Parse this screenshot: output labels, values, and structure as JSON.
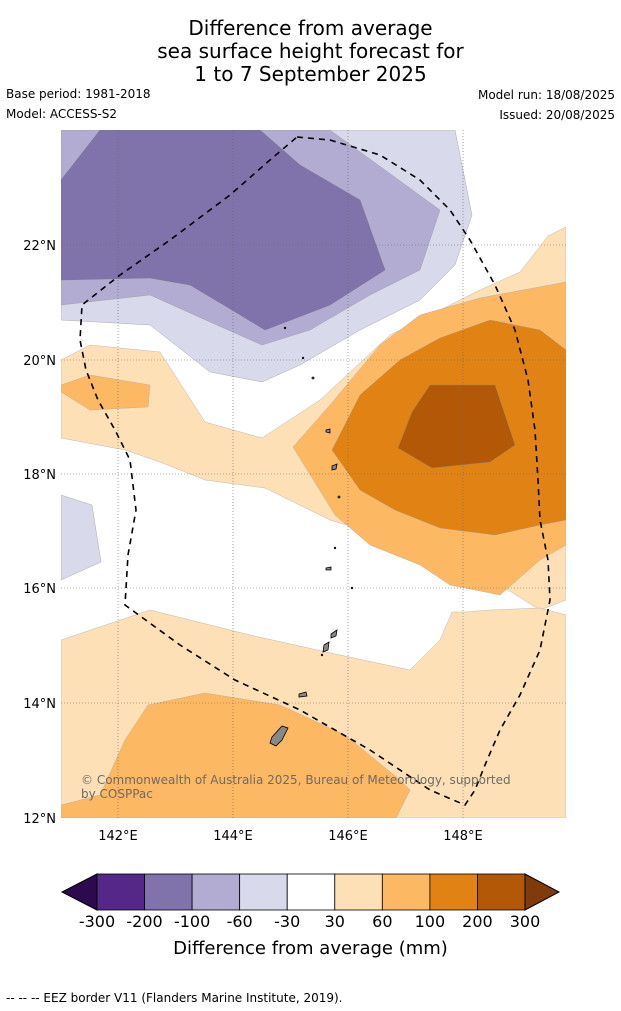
{
  "title_lines": [
    "Difference from average",
    "sea surface height forecast for",
    "1 to 7 September 2025"
  ],
  "meta": {
    "base_period": "Base period: 1981-2018",
    "model": "Model: ACCESS-S2",
    "model_run": "Model run: 18/08/2025",
    "issued": "Issued: 20/08/2025"
  },
  "map": {
    "lat_labels": [
      "22°N",
      "20°N",
      "18°N",
      "16°N",
      "14°N",
      "12°N"
    ],
    "lon_labels": [
      "142°E",
      "144°E",
      "146°E",
      "148°E"
    ],
    "credit": "© Commonwealth of Australia 2025, Bureau of Meteorology, supported by COSPPac",
    "border_style": "dashed black EEZ boundary"
  },
  "colorbar": {
    "title": "Difference from average (mm)",
    "tick_labels": [
      "-300",
      "-200",
      "-100",
      "-60",
      "-30",
      "30",
      "60",
      "100",
      "200",
      "300"
    ],
    "colors": [
      "#2d0a4e",
      "#542788",
      "#8073ac",
      "#b2abd2",
      "#d8daeb",
      "#ffffff",
      "#fee0b6",
      "#fdb863",
      "#e08214",
      "#b35806",
      "#7f3b08"
    ]
  },
  "footer": "--  --  -- EEZ border V11 (Flanders Marine Institute, 2019)."
}
